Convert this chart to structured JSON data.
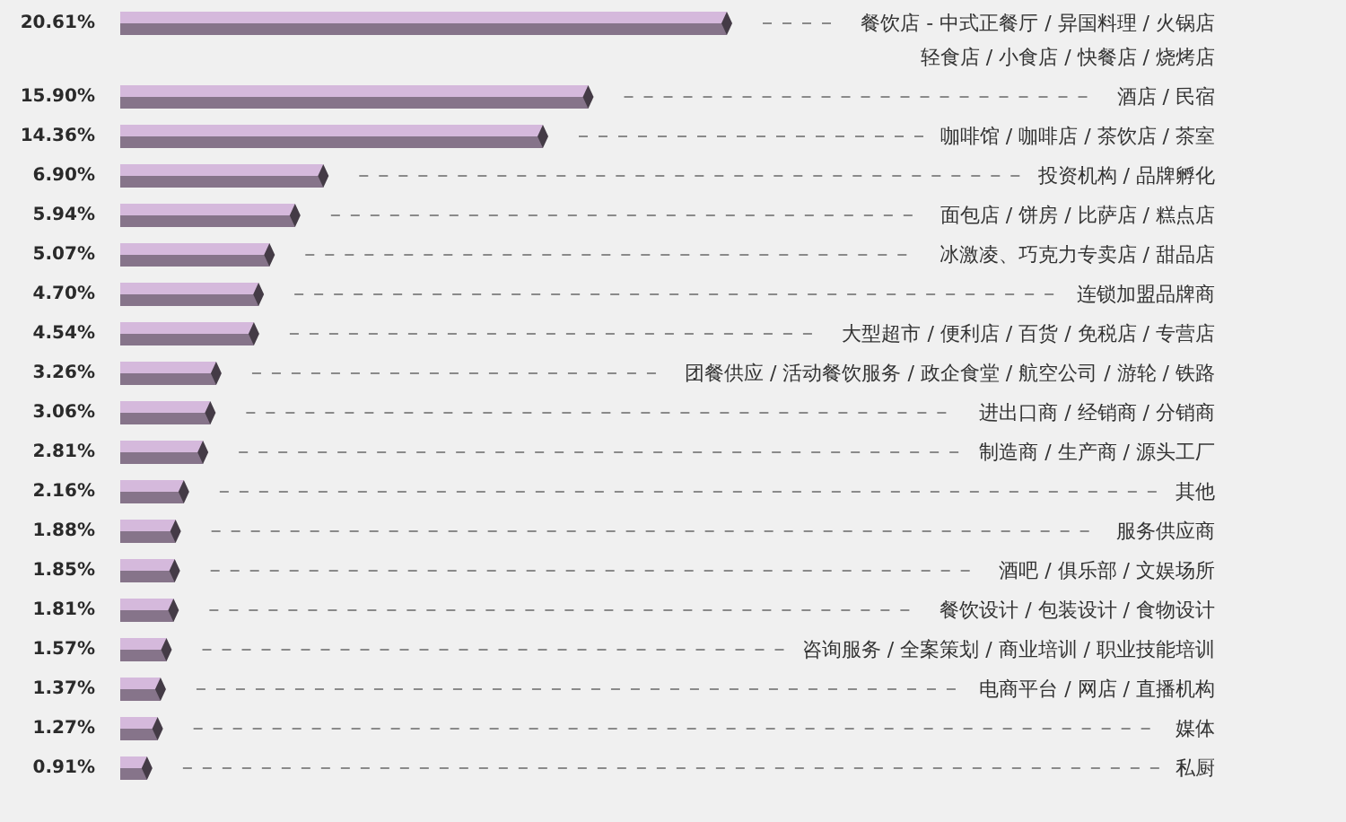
{
  "chart_data": {
    "type": "bar",
    "orientation": "horizontal",
    "categories": [
      "餐饮店 - 中式正餐厅 / 异国料理 / 火锅店轻食店 / 小食店 / 快餐店 / 烧烤店",
      "酒店 / 民宿",
      "咖啡馆 / 咖啡店 / 茶饮店 / 茶室",
      "投资机构 / 品牌孵化",
      "面包店 / 饼房 / 比萨店 / 糕点店",
      "冰激凌、巧克力专卖店 / 甜品店",
      "连锁加盟品牌商",
      "大型超市 / 便利店 / 百货 / 免税店 / 专营店",
      "团餐供应 / 活动餐饮服务 / 政企食堂 / 航空公司 / 游轮 / 铁路",
      "进出口商 / 经销商 / 分销商",
      "制造商 / 生产商 / 源头工厂",
      "其他",
      "服务供应商",
      "酒吧 / 俱乐部 / 文娱场所",
      "餐饮设计 / 包装设计 / 食物设计",
      "咨询服务 / 全案策划 / 商业培训 / 职业技能培训",
      "电商平台 / 网店 / 直播机构",
      "媒体",
      "私厨"
    ],
    "values": [
      20.61,
      15.9,
      14.36,
      6.9,
      5.94,
      5.07,
      4.7,
      4.54,
      3.26,
      3.06,
      2.81,
      2.16,
      1.88,
      1.85,
      1.81,
      1.57,
      1.37,
      1.27,
      0.91
    ],
    "value_labels": [
      "20.61%",
      "15.90%",
      "14.36%",
      "6.90%",
      "5.94%",
      "5.07%",
      "4.70%",
      "4.54%",
      "3.26%",
      "3.06%",
      "2.81%",
      "2.16%",
      "1.88%",
      "1.85%",
      "1.81%",
      "1.57%",
      "1.37%",
      "1.27%",
      "0.91%"
    ],
    "color": "#d5b9dc"
  }
}
